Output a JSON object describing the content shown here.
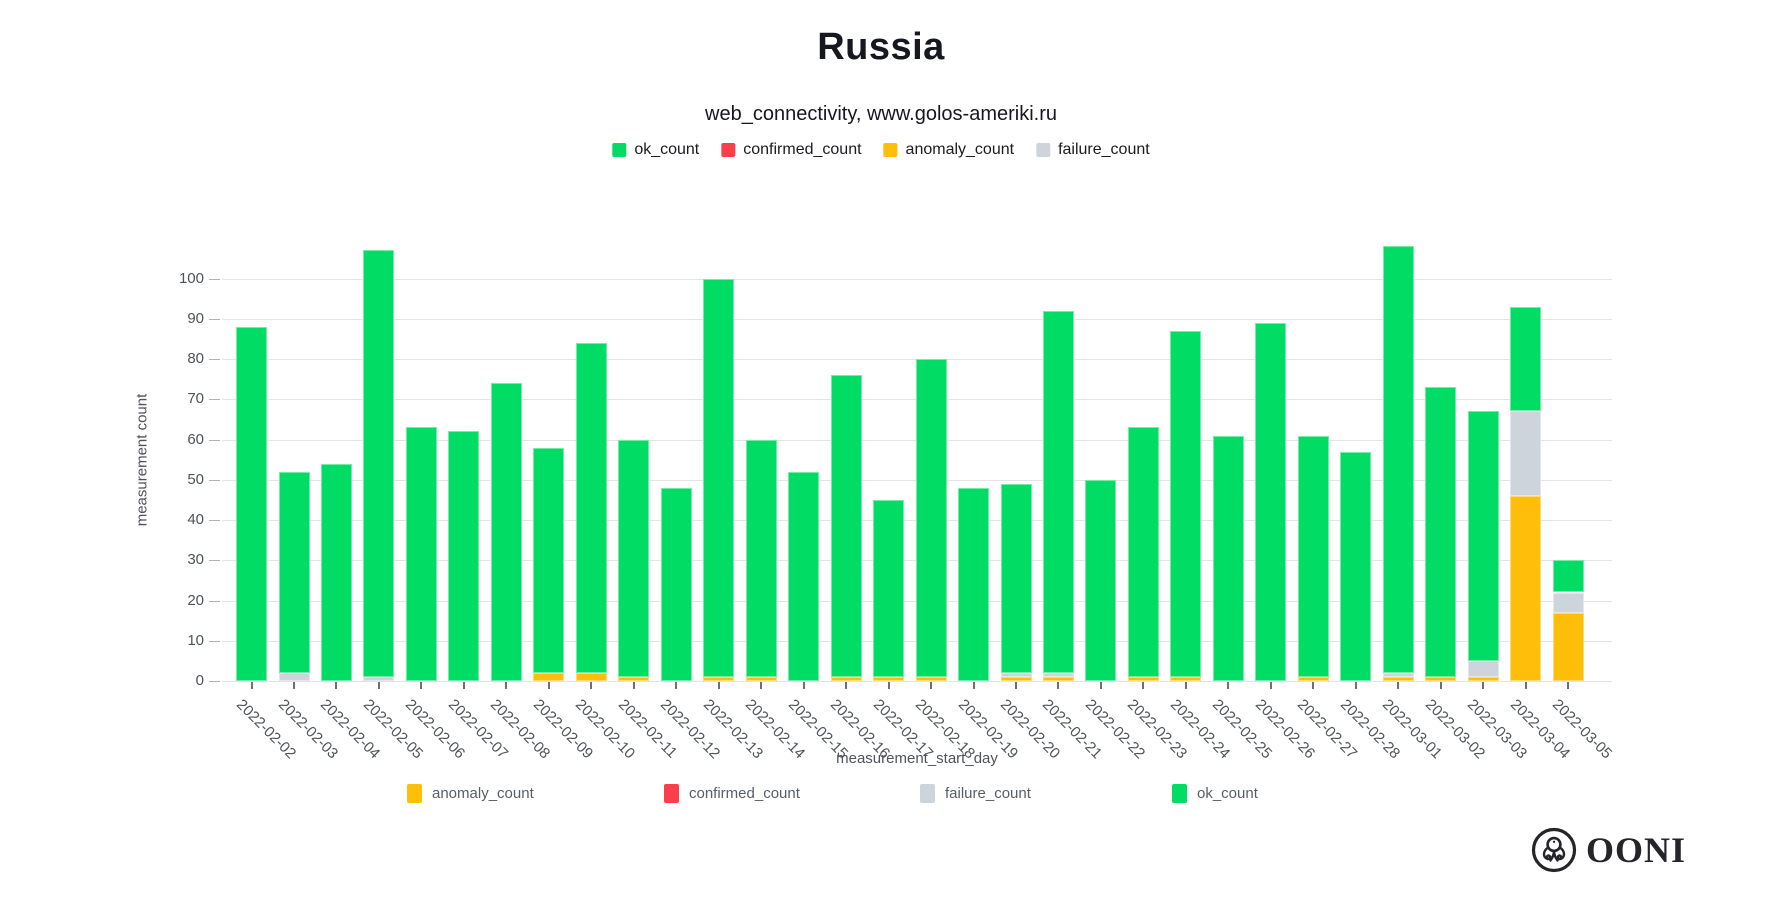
{
  "title": "Russia",
  "subtitle": "web_connectivity, www.golos-ameriki.ru",
  "logo": {
    "text": "OONI"
  },
  "colors": {
    "ok": "#00dc64",
    "confirmed": "#f93e4c",
    "anomaly": "#ffbe0a",
    "failure": "#cdd4db",
    "gridline": "#e4e4e4",
    "axis_text": "#4f535a"
  },
  "top_legend": [
    "ok_count",
    "confirmed_count",
    "anomaly_count",
    "failure_count"
  ],
  "bottom_legend": [
    "anomaly_count",
    "confirmed_count",
    "failure_count",
    "ok_count"
  ],
  "chart_data": {
    "type": "bar",
    "stacked": true,
    "title": "Russia",
    "subtitle": "web_connectivity, www.golos-ameriki.ru",
    "xlabel": "measurement_start_day",
    "ylabel": "measurement count",
    "ylim": [
      0,
      110
    ],
    "yticks": [
      0,
      10,
      20,
      30,
      40,
      50,
      60,
      70,
      80,
      90,
      100
    ],
    "grid": true,
    "legend_position": "top-and-bottom",
    "categories": [
      "2022-02-02",
      "2022-02-03",
      "2022-02-04",
      "2022-02-05",
      "2022-02-06",
      "2022-02-07",
      "2022-02-08",
      "2022-02-09",
      "2022-02-10",
      "2022-02-11",
      "2022-02-12",
      "2022-02-13",
      "2022-02-14",
      "2022-02-15",
      "2022-02-16",
      "2022-02-17",
      "2022-02-18",
      "2022-02-19",
      "2022-02-20",
      "2022-02-21",
      "2022-02-22",
      "2022-02-23",
      "2022-02-24",
      "2022-02-25",
      "2022-02-26",
      "2022-02-27",
      "2022-02-28",
      "2022-03-01",
      "2022-03-02",
      "2022-03-03",
      "2022-03-04",
      "2022-03-05"
    ],
    "series": [
      {
        "name": "anomaly_count",
        "color": "#ffbe0a",
        "values": [
          0,
          0,
          0,
          0,
          0,
          0,
          0,
          2,
          2,
          1,
          0,
          1,
          1,
          0,
          1,
          1,
          1,
          0,
          1,
          1,
          0,
          1,
          1,
          0,
          0,
          1,
          0,
          1,
          1,
          1,
          46,
          17
        ]
      },
      {
        "name": "confirmed_count",
        "color": "#f93e4c",
        "values": [
          0,
          0,
          0,
          0,
          0,
          0,
          0,
          0,
          0,
          0,
          0,
          0,
          0,
          0,
          0,
          0,
          0,
          0,
          0,
          0,
          0,
          0,
          0,
          0,
          0,
          0,
          0,
          0,
          0,
          0,
          0,
          0
        ]
      },
      {
        "name": "failure_count",
        "color": "#cdd4db",
        "values": [
          0,
          2,
          0,
          1,
          0,
          0,
          0,
          0,
          0,
          0,
          0,
          0,
          0,
          0,
          0,
          0,
          0,
          0,
          1,
          1,
          0,
          0,
          0,
          0,
          0,
          0,
          0,
          1,
          0,
          4,
          21,
          5
        ]
      },
      {
        "name": "ok_count",
        "color": "#00dc64",
        "values": [
          88,
          50,
          54,
          106,
          63,
          62,
          74,
          56,
          82,
          59,
          48,
          99,
          59,
          52,
          75,
          44,
          79,
          48,
          47,
          90,
          50,
          62,
          86,
          61,
          89,
          60,
          57,
          106,
          72,
          62,
          26,
          8
        ]
      }
    ],
    "totals": [
      88,
      52,
      54,
      107,
      63,
      62,
      74,
      58,
      84,
      60,
      48,
      100,
      60,
      52,
      76,
      45,
      80,
      48,
      49,
      92,
      50,
      63,
      87,
      61,
      89,
      61,
      57,
      108,
      73,
      67,
      93,
      30
    ]
  }
}
